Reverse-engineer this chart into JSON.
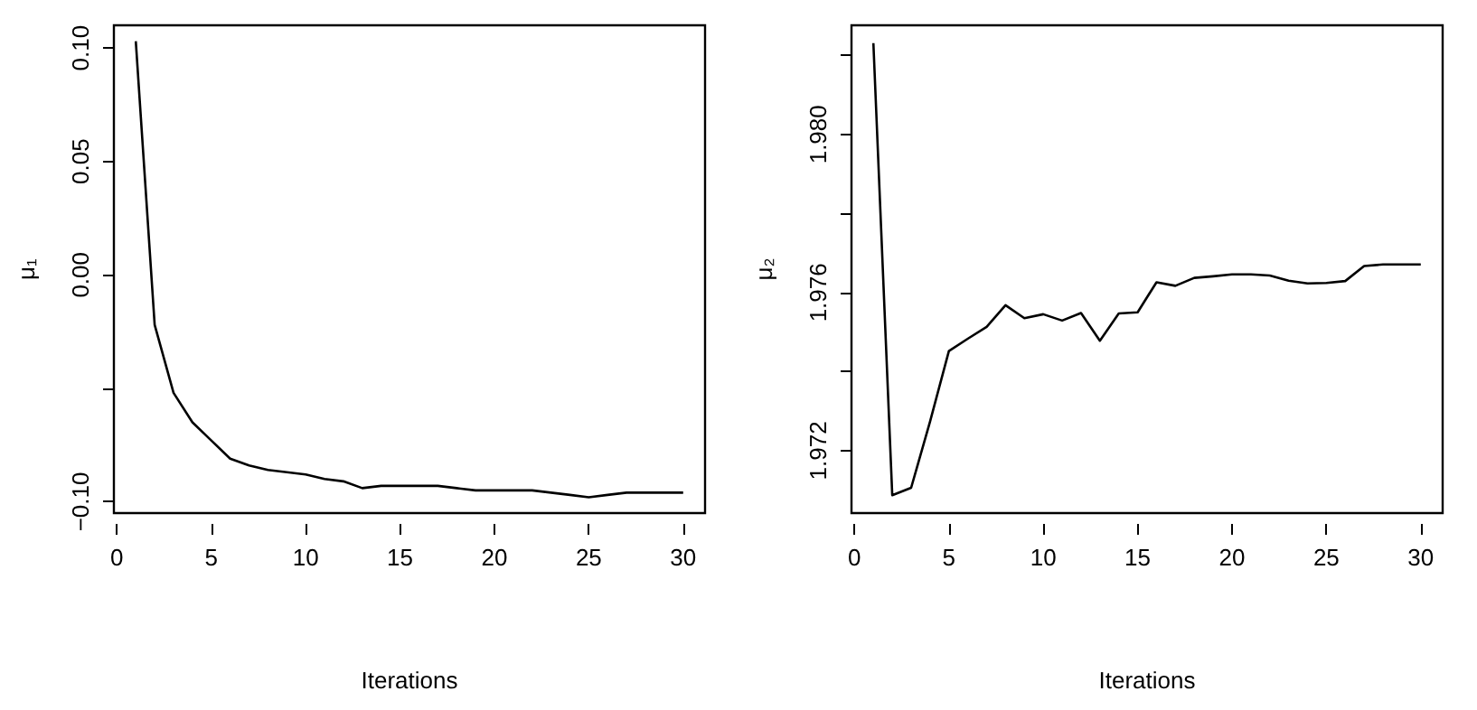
{
  "chart_data": [
    {
      "type": "line",
      "xlabel": "Iterations",
      "ylabel": "μ₁",
      "x": [
        1,
        2,
        3,
        4,
        5,
        6,
        7,
        8,
        9,
        10,
        11,
        12,
        13,
        14,
        15,
        16,
        17,
        18,
        19,
        20,
        21,
        22,
        23,
        24,
        25,
        26,
        27,
        28,
        29,
        30
      ],
      "series": [
        {
          "color": "#000000",
          "values": [
            0.103,
            -0.022,
            -0.052,
            -0.065,
            -0.073,
            -0.081,
            -0.084,
            -0.086,
            -0.087,
            -0.088,
            -0.09,
            -0.091,
            -0.094,
            -0.093,
            -0.093,
            -0.093,
            -0.093,
            -0.094,
            -0.095,
            -0.095,
            -0.095,
            -0.095,
            -0.096,
            -0.097,
            -0.098,
            -0.097,
            -0.096,
            -0.096,
            -0.096,
            -0.096
          ]
        }
      ],
      "xlim": [
        -0.16,
        31.16
      ],
      "xticks": [
        0,
        5,
        10,
        15,
        20,
        25,
        30
      ],
      "ylim": [
        -0.105,
        0.11
      ],
      "yticks": [
        {
          "value": -0.1,
          "label": "−0.10"
        },
        {
          "value": -0.05,
          "label": null
        },
        {
          "value": 0,
          "label": "0.00"
        },
        {
          "value": 0.05,
          "label": "0.05"
        },
        {
          "value": 0.1,
          "label": "0.10"
        }
      ]
    },
    {
      "type": "line",
      "xlabel": "Iterations",
      "ylabel": "μ₂",
      "x": [
        1,
        2,
        3,
        4,
        5,
        6,
        7,
        8,
        9,
        10,
        11,
        12,
        13,
        14,
        15,
        16,
        17,
        18,
        19,
        20,
        21,
        22,
        23,
        24,
        25,
        26,
        27,
        28,
        29,
        30
      ],
      "series": [
        {
          "color": "#000000",
          "values": [
            1.98231,
            1.97087,
            1.97106,
            1.97273,
            1.97452,
            1.97483,
            1.97513,
            1.97568,
            1.97535,
            1.97545,
            1.97529,
            1.97548,
            1.97478,
            1.97547,
            1.9755,
            1.97626,
            1.97617,
            1.97637,
            1.97641,
            1.97646,
            1.97646,
            1.97643,
            1.9763,
            1.97623,
            1.97624,
            1.97629,
            1.97667,
            1.97671,
            1.97671,
            1.97671
          ]
        }
      ],
      "xlim": [
        -0.16,
        31.16
      ],
      "xticks": [
        0,
        5,
        10,
        15,
        20,
        25,
        30
      ],
      "ylim": [
        1.97042,
        1.98276
      ],
      "yticks": [
        {
          "value": 1.972,
          "label": "1.972"
        },
        {
          "value": 1.974,
          "label": null
        },
        {
          "value": 1.976,
          "label": "1.976"
        },
        {
          "value": 1.978,
          "label": null
        },
        {
          "value": 1.98,
          "label": "1.980"
        },
        {
          "value": 1.982,
          "label": null
        }
      ]
    }
  ]
}
